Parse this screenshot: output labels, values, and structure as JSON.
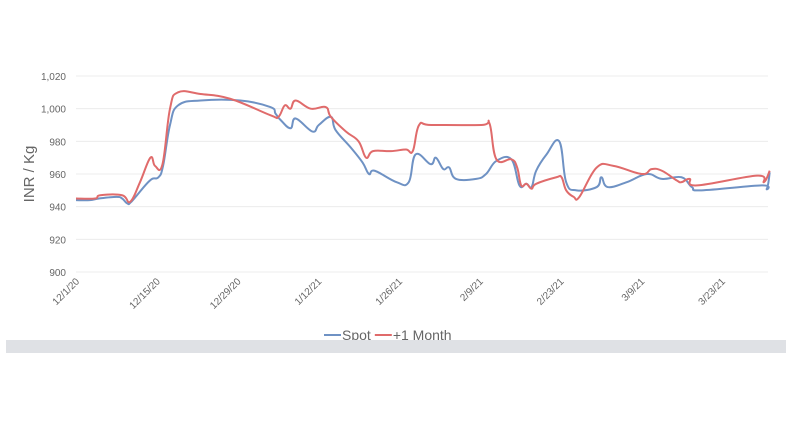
{
  "chart_data": {
    "type": "line",
    "title": "",
    "xlabel": "",
    "ylabel": "INR / Kg",
    "ylim": [
      900,
      1020
    ],
    "yticks": [
      900,
      920,
      940,
      960,
      980,
      1000,
      1020
    ],
    "ytick_labels": [
      "900",
      "920",
      "940",
      "960",
      "980",
      "1,000",
      "1,020"
    ],
    "x_unit": "days since 12/1/20",
    "xlim": [
      0,
      120
    ],
    "xticks": [
      0,
      14,
      28,
      42,
      56,
      70,
      84,
      98,
      112
    ],
    "xtick_labels": [
      "12/1/20",
      "12/15/20",
      "12/29/20",
      "1/12/21",
      "1/26/21",
      "2/9/21",
      "2/23/21",
      "3/9/21",
      "3/23/21"
    ],
    "grid": true,
    "legend_position": "bottom",
    "series": [
      {
        "name": "Spot",
        "color": "#6f92c4",
        "points": [
          [
            0,
            944
          ],
          [
            2.4,
            944
          ],
          [
            4,
            945
          ],
          [
            7,
            946
          ],
          [
            8,
            945
          ],
          [
            8.9,
            942
          ],
          [
            9.6,
            943
          ],
          [
            12,
            953
          ],
          [
            13.2,
            957
          ],
          [
            14.3,
            958
          ],
          [
            15.1,
            965
          ],
          [
            16.3,
            990
          ],
          [
            17.7,
            1002
          ],
          [
            21.6,
            1005
          ],
          [
            28.5,
            1005
          ],
          [
            33.7,
            1001
          ],
          [
            34.6,
            997
          ],
          [
            35.5,
            993
          ],
          [
            37.2,
            988
          ],
          [
            38.1,
            994
          ],
          [
            41,
            986
          ],
          [
            42.1,
            990
          ],
          [
            44.2,
            995
          ],
          [
            45,
            987
          ],
          [
            47.7,
            976
          ],
          [
            49.7,
            967
          ],
          [
            50.8,
            960
          ],
          [
            51.8,
            962
          ],
          [
            55.6,
            955
          ],
          [
            57.7,
            955
          ],
          [
            58.9,
            972
          ],
          [
            61.5,
            966
          ],
          [
            62.4,
            970
          ],
          [
            63.7,
            963
          ],
          [
            64.7,
            964
          ],
          [
            65.9,
            957
          ],
          [
            69.4,
            957
          ],
          [
            71.1,
            960
          ],
          [
            72.9,
            968
          ],
          [
            75.5,
            969
          ],
          [
            76.9,
            953
          ],
          [
            78.1,
            954
          ],
          [
            79,
            952
          ],
          [
            79.8,
            962
          ],
          [
            81.6,
            972
          ],
          [
            83.8,
            980
          ],
          [
            85,
            955
          ],
          [
            86.8,
            950
          ],
          [
            90.3,
            952
          ],
          [
            91.1,
            958
          ],
          [
            92.2,
            952
          ],
          [
            95.5,
            955
          ],
          [
            99,
            960
          ],
          [
            101.6,
            957
          ],
          [
            105,
            958
          ],
          [
            106.8,
            952
          ],
          [
            108.5,
            950
          ],
          [
            118.9,
            953
          ],
          [
            119.8,
            951
          ],
          [
            120.3,
            961
          ]
        ]
      },
      {
        "name": "+1 Month",
        "color": "#e06b6b",
        "points": [
          [
            0,
            945
          ],
          [
            3.3,
            945
          ],
          [
            4.2,
            947
          ],
          [
            8,
            947
          ],
          [
            9.4,
            943
          ],
          [
            11.1,
            955
          ],
          [
            12.9,
            970
          ],
          [
            13.7,
            965
          ],
          [
            15,
            966
          ],
          [
            16.3,
            1000
          ],
          [
            17.7,
            1010
          ],
          [
            21.6,
            1009
          ],
          [
            26.8,
            1006
          ],
          [
            33.7,
            996
          ],
          [
            35.1,
            995
          ],
          [
            36.2,
            1002
          ],
          [
            37.2,
            1000
          ],
          [
            38.1,
            1005
          ],
          [
            40.7,
            1000
          ],
          [
            43.3,
            1001
          ],
          [
            44.2,
            995
          ],
          [
            46.8,
            986
          ],
          [
            49,
            980
          ],
          [
            50.3,
            970
          ],
          [
            51.5,
            974
          ],
          [
            54.6,
            974
          ],
          [
            57.2,
            975
          ],
          [
            58.4,
            974
          ],
          [
            59.5,
            990
          ],
          [
            61.6,
            990
          ],
          [
            70.3,
            990
          ],
          [
            71.7,
            991
          ],
          [
            72.9,
            969
          ],
          [
            75.5,
            969
          ],
          [
            76.5,
            964
          ],
          [
            77.2,
            953
          ],
          [
            78.1,
            954
          ],
          [
            79,
            951
          ],
          [
            79.8,
            954
          ],
          [
            83.3,
            958
          ],
          [
            84.2,
            958
          ],
          [
            85,
            950
          ],
          [
            86.3,
            946
          ],
          [
            87.3,
            946
          ],
          [
            90.3,
            964
          ],
          [
            93.2,
            965
          ],
          [
            98.1,
            960
          ],
          [
            99.8,
            963
          ],
          [
            101.6,
            962
          ],
          [
            104.2,
            956
          ],
          [
            105,
            955
          ],
          [
            106.4,
            957
          ],
          [
            107.7,
            953
          ],
          [
            118.1,
            959
          ],
          [
            119.3,
            955
          ],
          [
            120.3,
            962
          ]
        ]
      }
    ]
  }
}
